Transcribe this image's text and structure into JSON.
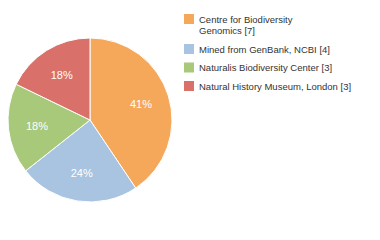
{
  "chart_data": {
    "type": "pie",
    "categories": [
      "Centre for Biodiversity\nGenomics [7]",
      "Mined from GenBank, NCBI [4]",
      "Naturalis Biodiversity Center [3]",
      "Natural History Museum, London [3]"
    ],
    "values": [
      41,
      24,
      18,
      18
    ],
    "value_labels": [
      "41%",
      "24%",
      "18%",
      "18%"
    ],
    "colors": [
      "#f5a85a",
      "#a8c4e0",
      "#a8c87a",
      "#d9706a"
    ],
    "data_labels": true,
    "legend": "right"
  }
}
